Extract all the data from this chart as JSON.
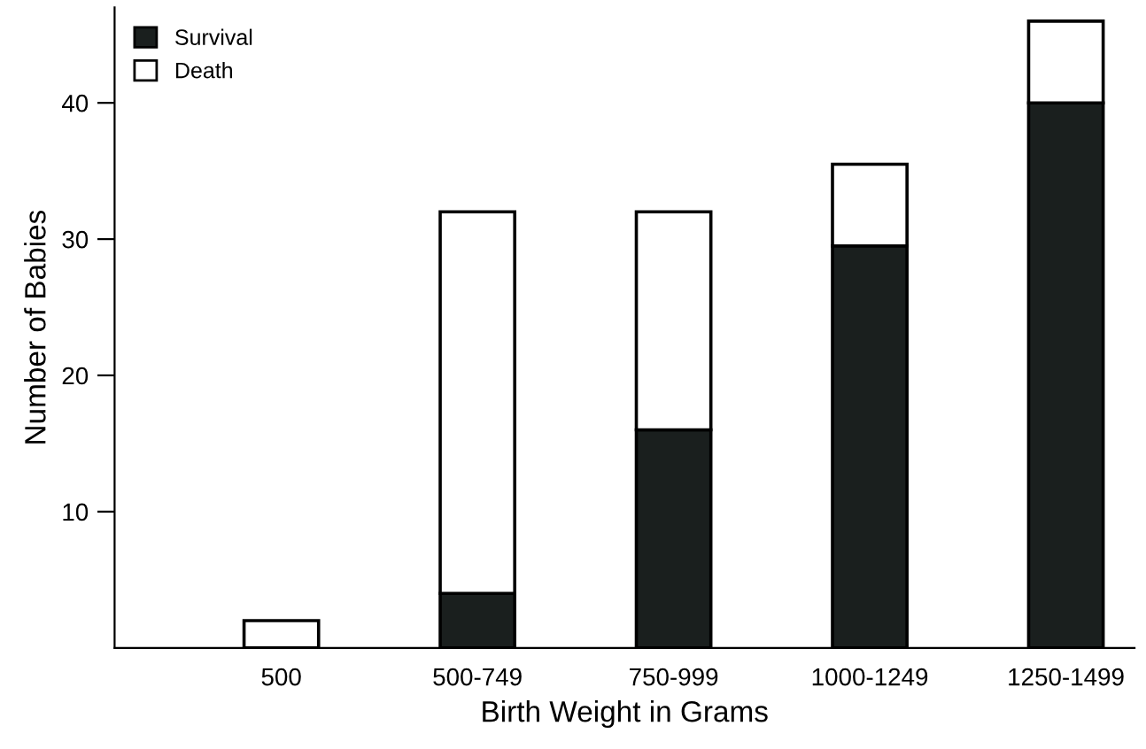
{
  "chart_data": {
    "type": "bar",
    "stacked": true,
    "xlabel": "Birth Weight in Grams",
    "ylabel": "Number of Babies",
    "categories": [
      "500",
      "500-749",
      "750-999",
      "1000-1249",
      "1250-1499"
    ],
    "series": [
      {
        "name": "Survival",
        "color": "#1a1f1e",
        "values": [
          0,
          4,
          16,
          29.5,
          40
        ]
      },
      {
        "name": "Death",
        "color": "#ffffff",
        "values": [
          2,
          28,
          16,
          6,
          6
        ]
      }
    ],
    "ylim": [
      0,
      47
    ],
    "yticks": [
      10,
      20,
      30,
      40
    ],
    "grid": false,
    "legend": "top left"
  }
}
